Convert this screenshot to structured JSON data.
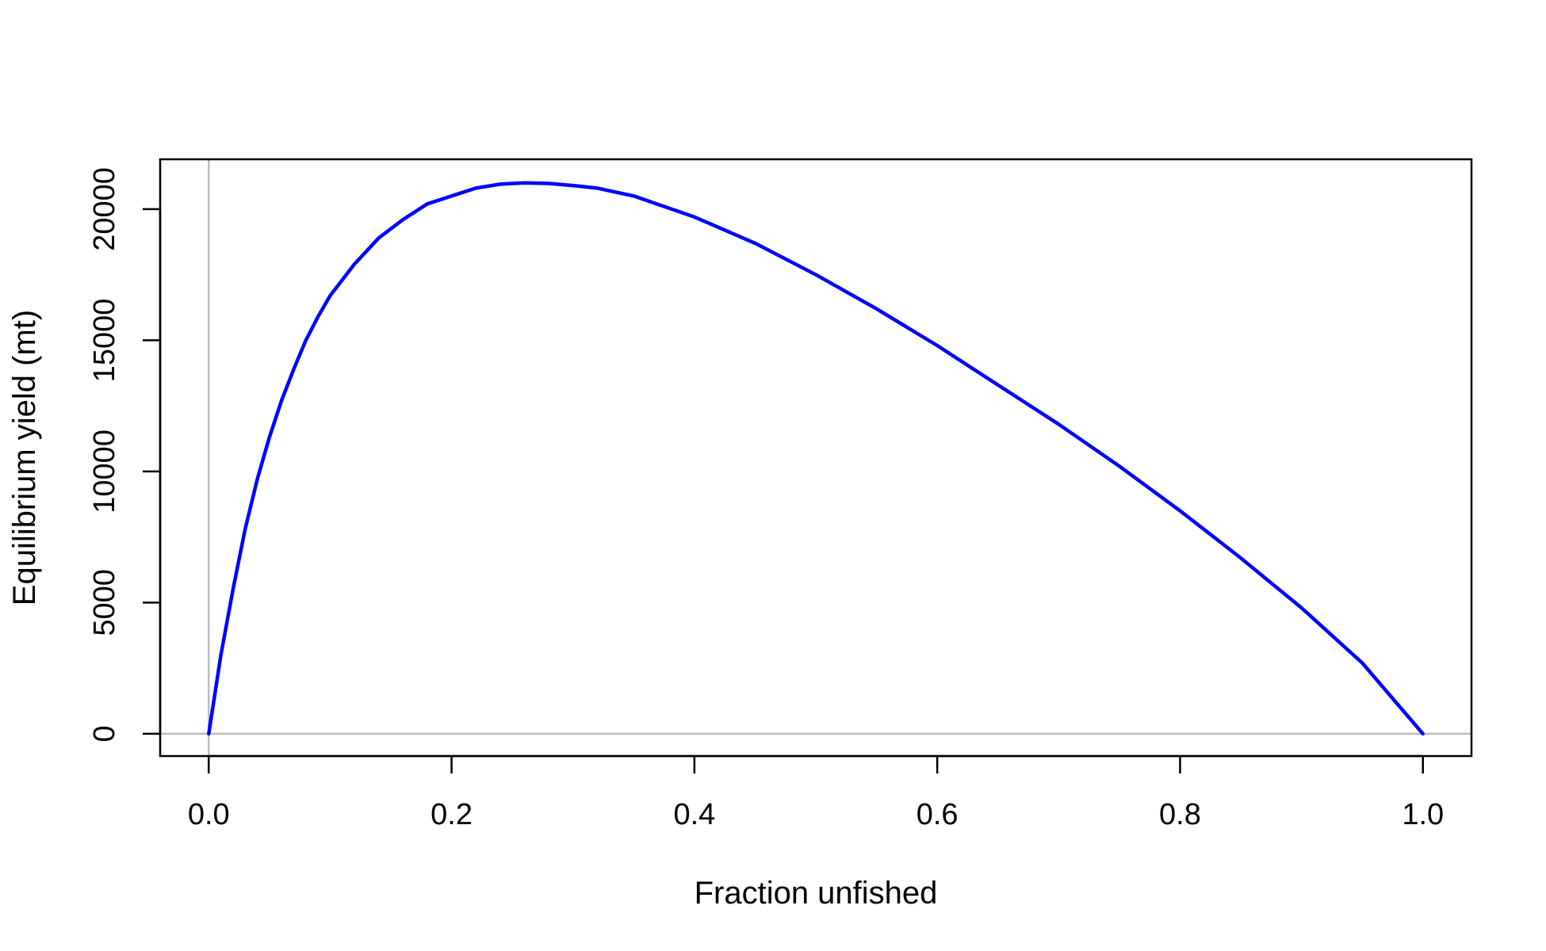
{
  "chart_data": {
    "type": "line",
    "title": "",
    "xlabel": "Fraction unfished",
    "ylabel": "Equilibrium yield (mt)",
    "xlim": [
      -0.04,
      1.04
    ],
    "ylim": [
      -850,
      21900
    ],
    "x_ticks": [
      0.0,
      0.2,
      0.4,
      0.6,
      0.8,
      1.0
    ],
    "x_tick_labels": [
      "0.0",
      "0.2",
      "0.4",
      "0.6",
      "0.8",
      "1.0"
    ],
    "y_ticks": [
      0,
      5000,
      10000,
      15000,
      20000
    ],
    "y_tick_labels": [
      "0",
      "5000",
      "10000",
      "15000",
      "20000"
    ],
    "reference_lines": {
      "h": 0,
      "v": 0,
      "color": "#bebebe"
    },
    "grid": false,
    "legend": "none",
    "series": [
      {
        "color": "#0000ff",
        "x": [
          0.0,
          0.01,
          0.02,
          0.03,
          0.04,
          0.05,
          0.06,
          0.07,
          0.08,
          0.09,
          0.1,
          0.12,
          0.14,
          0.16,
          0.18,
          0.2,
          0.22,
          0.24,
          0.26,
          0.28,
          0.3,
          0.32,
          0.35,
          0.4,
          0.45,
          0.5,
          0.55,
          0.6,
          0.65,
          0.7,
          0.75,
          0.8,
          0.85,
          0.9,
          0.95,
          1.0
        ],
        "y": [
          0,
          3000,
          5500,
          7800,
          9700,
          11300,
          12700,
          13900,
          15000,
          15900,
          16700,
          17900,
          18900,
          19600,
          20200,
          20500,
          20800,
          20950,
          21000,
          20980,
          20900,
          20800,
          20500,
          19700,
          18700,
          17500,
          16200,
          14800,
          13300,
          11800,
          10200,
          8500,
          6700,
          4800,
          2700,
          0
        ]
      }
    ]
  }
}
